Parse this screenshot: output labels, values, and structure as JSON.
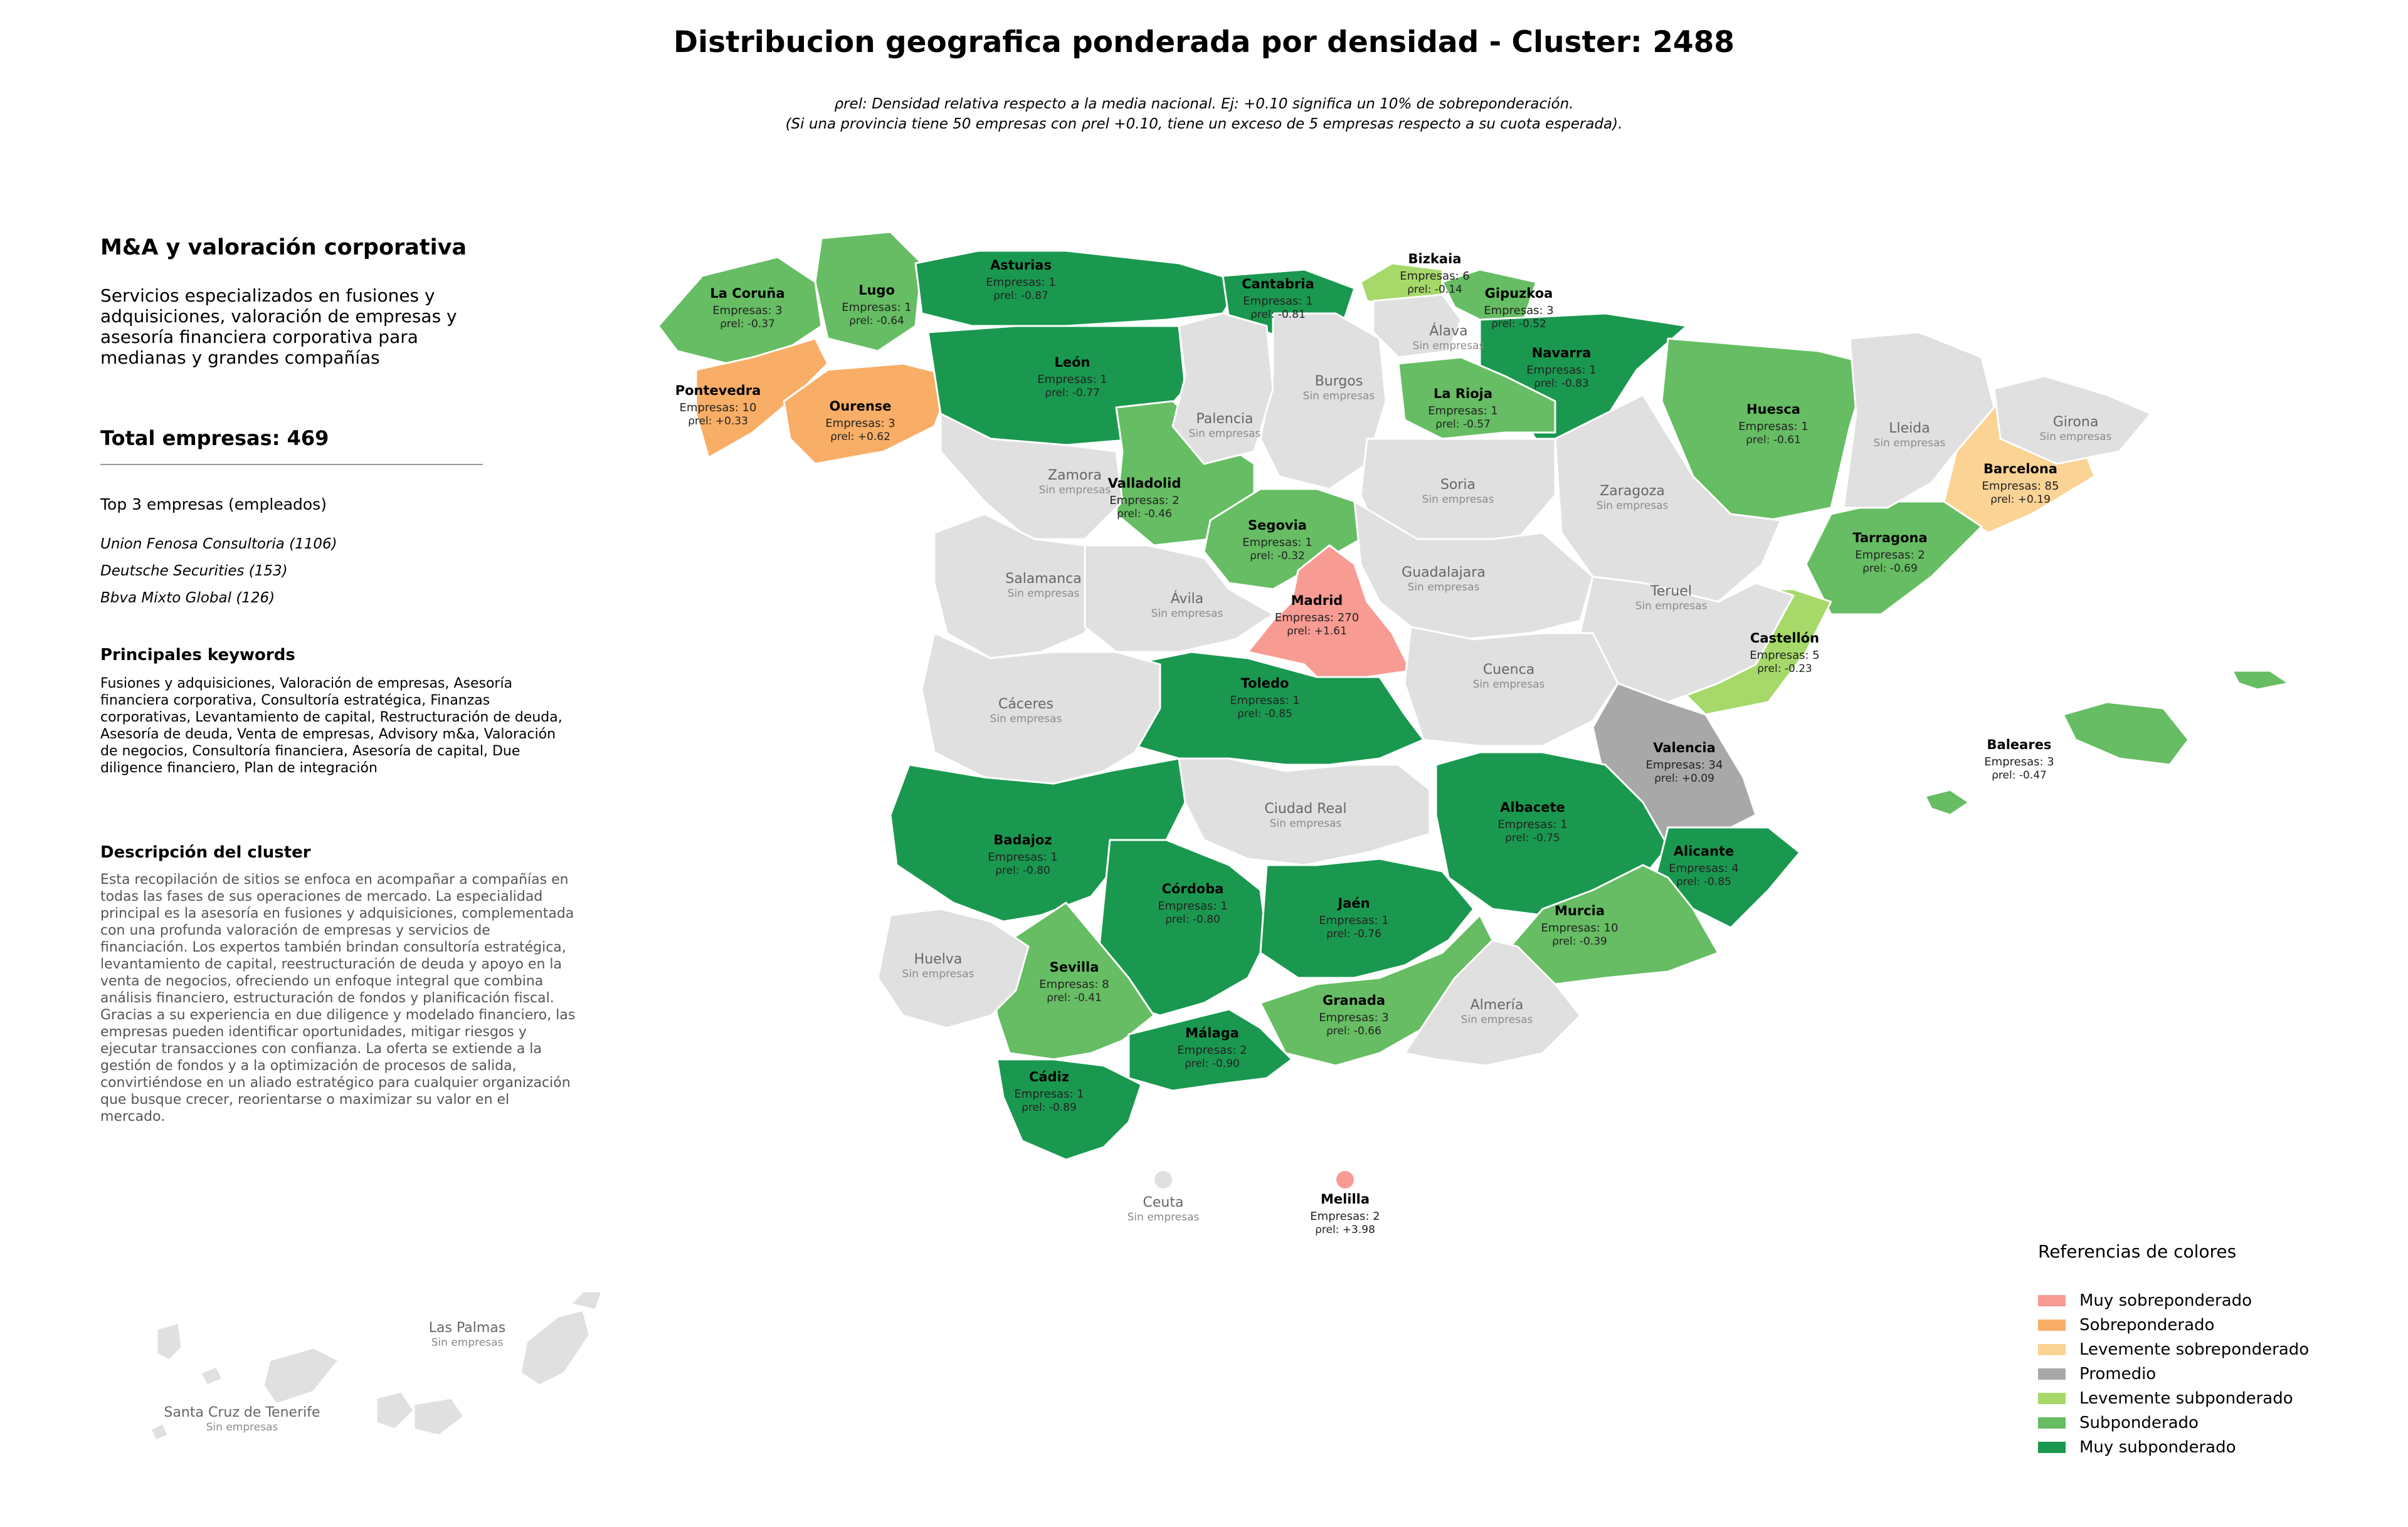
{
  "title": "Distribucion geografica ponderada por densidad - Cluster: 2488",
  "subtitle": {
    "line1": "ρrel: Densidad relativa respecto a la media nacional. Ej: +0.10 significa un 10% de sobreponderación.",
    "line2": "(Si una provincia tiene 50 empresas con ρrel +0.10, tiene un exceso de 5 empresas respecto a su cuota esperada)."
  },
  "panel": {
    "cluster_name": "M&A y valoración corporativa",
    "cluster_description": "Servicios especializados en fusiones y adquisiciones, valoración de empresas y asesoría financiera corporativa para medianas y grandes compañías",
    "total": "Total empresas: 469",
    "top3_heading": "Top 3 empresas (empleados)",
    "top3": [
      "Union Fenosa Consultoria (1106)",
      "Deutsche Securities (153)",
      "Bbva Mixto Global (126)"
    ],
    "keywords_heading": "Principales keywords",
    "keywords": "Fusiones y adquisiciones, Valoración de empresas, Asesoría financiera corporativa, Consultoría estratégica, Finanzas corporativas, Levantamiento de capital, Restructuración de deuda, Asesoría de deuda, Venta de empresas, Advisory m&a, Valoración de negocios, Consultoría financiera, Asesoría de capital, Due diligence financiero, Plan de integración",
    "description_heading": "Descripción del cluster",
    "description": "Esta recopilación de sitios se enfoca en acompañar a compañías en todas las fases de sus operaciones de mercado. La especialidad principal es la asesoría en fusiones y adquisiciones, complementada con una profunda valoración de empresas y servicios de financiación. Los expertos también brindan consultoría estratégica, levantamiento de capital, reestructuración de deuda y apoyo en la venta de negocios, ofreciendo un enfoque integral que combina análisis financiero, estructuración de fondos y planificación fiscal. Gracias a su experiencia en due diligence y modelado financiero, las empresas pueden identificar oportunidades, mitigar riesgos y ejecutar transacciones con confianza. La oferta se extiende a la gestión de fondos y a la optimización de procesos de salida, convirtiéndose en un aliado estratégico para cualquier organización que busque crecer, reorientarse o maximizar su valor en el mercado."
  },
  "colors": {
    "muy_sobre": "#f89b93",
    "sobre": "#f8ae66",
    "lev_sobre": "#fbd395",
    "promedio": "#a8a8a8",
    "lev_sub": "#a6d96a",
    "sub": "#66bd63",
    "muy_sub": "#1a9850",
    "sin": "#e0e0e0"
  },
  "legend": {
    "title": "Referencias de colores",
    "items": [
      {
        "label": "Muy sobreponderado",
        "color": "#f89b93"
      },
      {
        "label": "Sobreponderado",
        "color": "#f8ae66"
      },
      {
        "label": "Levemente sobreponderado",
        "color": "#fbd395"
      },
      {
        "label": "Promedio",
        "color": "#a8a8a8"
      },
      {
        "label": "Levemente subponderado",
        "color": "#a6d96a"
      },
      {
        "label": "Subponderado",
        "color": "#66bd63"
      },
      {
        "label": "Muy subponderado",
        "color": "#1a9850"
      }
    ]
  },
  "sin_empresas_label": "Sin empresas",
  "provinces": [
    {
      "name": "La Coruña",
      "category": "sub",
      "empresas": "Empresas: 3",
      "rho": "ρrel: -0.37"
    },
    {
      "name": "Lugo",
      "category": "sub",
      "empresas": "Empresas: 1",
      "rho": "ρrel: -0.64"
    },
    {
      "name": "Asturias",
      "category": "muy_sub",
      "empresas": "Empresas: 1",
      "rho": "ρrel: -0.87"
    },
    {
      "name": "Cantabria",
      "category": "muy_sub",
      "empresas": "Empresas: 1",
      "rho": "ρrel: -0.81"
    },
    {
      "name": "Bizkaia",
      "category": "lev_sub",
      "empresas": "Empresas: 6",
      "rho": "ρrel: -0.14"
    },
    {
      "name": "Gipuzkoa",
      "category": "sub",
      "empresas": "Empresas: 3",
      "rho": "ρrel: -0.52"
    },
    {
      "name": "Navarra",
      "category": "muy_sub",
      "empresas": "Empresas: 1",
      "rho": "ρrel: -0.83"
    },
    {
      "name": "Pontevedra",
      "category": "sobre",
      "empresas": "Empresas: 10",
      "rho": "ρrel: +0.33"
    },
    {
      "name": "Ourense",
      "category": "sobre",
      "empresas": "Empresas: 3",
      "rho": "ρrel: +0.62"
    },
    {
      "name": "León",
      "category": "muy_sub",
      "empresas": "Empresas: 1",
      "rho": "ρrel: -0.77"
    },
    {
      "name": "La Rioja",
      "category": "sub",
      "empresas": "Empresas: 1",
      "rho": "ρrel: -0.57"
    },
    {
      "name": "Huesca",
      "category": "sub",
      "empresas": "Empresas: 1",
      "rho": "ρrel: -0.61"
    },
    {
      "name": "Barcelona",
      "category": "lev_sobre",
      "empresas": "Empresas: 85",
      "rho": "ρrel: +0.19"
    },
    {
      "name": "Valladolid",
      "category": "sub",
      "empresas": "Empresas: 2",
      "rho": "ρrel: -0.46"
    },
    {
      "name": "Segovia",
      "category": "sub",
      "empresas": "Empresas: 1",
      "rho": "ρrel: -0.32"
    },
    {
      "name": "Tarragona",
      "category": "sub",
      "empresas": "Empresas: 2",
      "rho": "ρrel: -0.69"
    },
    {
      "name": "Madrid",
      "category": "muy_sobre",
      "empresas": "Empresas: 270",
      "rho": "ρrel: +1.61"
    },
    {
      "name": "Castellón",
      "category": "lev_sub",
      "empresas": "Empresas: 5",
      "rho": "ρrel: -0.23"
    },
    {
      "name": "Toledo",
      "category": "muy_sub",
      "empresas": "Empresas: 1",
      "rho": "ρrel: -0.85"
    },
    {
      "name": "Valencia",
      "category": "promedio",
      "empresas": "Empresas: 34",
      "rho": "ρrel: +0.09"
    },
    {
      "name": "Baleares",
      "category": "sub",
      "empresas": "Empresas: 3",
      "rho": "ρrel: -0.47"
    },
    {
      "name": "Badajoz",
      "category": "muy_sub",
      "empresas": "Empresas: 1",
      "rho": "ρrel: -0.80"
    },
    {
      "name": "Albacete",
      "category": "muy_sub",
      "empresas": "Empresas: 1",
      "rho": "ρrel: -0.75"
    },
    {
      "name": "Alicante",
      "category": "muy_sub",
      "empresas": "Empresas: 4",
      "rho": "ρrel: -0.85"
    },
    {
      "name": "Córdoba",
      "category": "muy_sub",
      "empresas": "Empresas: 1",
      "rho": "ρrel: -0.80"
    },
    {
      "name": "Jaén",
      "category": "muy_sub",
      "empresas": "Empresas: 1",
      "rho": "ρrel: -0.76"
    },
    {
      "name": "Murcia",
      "category": "sub",
      "empresas": "Empresas: 10",
      "rho": "ρrel: -0.39"
    },
    {
      "name": "Sevilla",
      "category": "sub",
      "empresas": "Empresas: 8",
      "rho": "ρrel: -0.41"
    },
    {
      "name": "Granada",
      "category": "sub",
      "empresas": "Empresas: 3",
      "rho": "ρrel: -0.66"
    },
    {
      "name": "Málaga",
      "category": "muy_sub",
      "empresas": "Empresas: 2",
      "rho": "ρrel: -0.90"
    },
    {
      "name": "Cádiz",
      "category": "muy_sub",
      "empresas": "Empresas: 1",
      "rho": "ρrel: -0.89"
    },
    {
      "name": "Melilla",
      "category": "muy_sobre",
      "empresas": "Empresas: 2",
      "rho": "ρrel: +3.98"
    },
    {
      "name": "Álava",
      "category": "sin"
    },
    {
      "name": "Burgos",
      "category": "sin"
    },
    {
      "name": "Palencia",
      "category": "sin"
    },
    {
      "name": "Lleida",
      "category": "sin"
    },
    {
      "name": "Girona",
      "category": "sin"
    },
    {
      "name": "Zamora",
      "category": "sin"
    },
    {
      "name": "Soria",
      "category": "sin"
    },
    {
      "name": "Zaragoza",
      "category": "sin"
    },
    {
      "name": "Salamanca",
      "category": "sin"
    },
    {
      "name": "Ávila",
      "category": "sin"
    },
    {
      "name": "Guadalajara",
      "category": "sin"
    },
    {
      "name": "Teruel",
      "category": "sin"
    },
    {
      "name": "Cáceres",
      "category": "sin"
    },
    {
      "name": "Cuenca",
      "category": "sin"
    },
    {
      "name": "Ciudad Real",
      "category": "sin"
    },
    {
      "name": "Huelva",
      "category": "sin"
    },
    {
      "name": "Almería",
      "category": "sin"
    },
    {
      "name": "Ceuta",
      "category": "sin"
    },
    {
      "name": "Las Palmas",
      "category": "sin"
    },
    {
      "name": "Santa Cruz de Tenerife",
      "category": "sin"
    }
  ]
}
